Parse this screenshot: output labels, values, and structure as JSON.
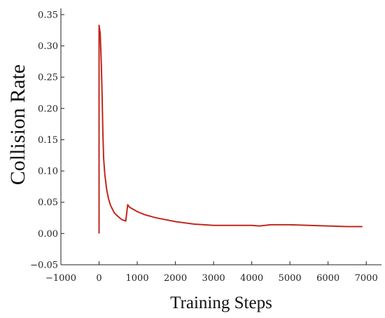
{
  "chart_data": {
    "type": "line",
    "title": "",
    "xlabel": "Training Steps",
    "ylabel": "Collision Rate",
    "xlim": [
      -1000,
      7400
    ],
    "ylim": [
      -0.05,
      0.36
    ],
    "xticks": [
      -1000,
      0,
      1000,
      2000,
      3000,
      4000,
      5000,
      6000,
      7000
    ],
    "xtick_labels": [
      "−1000",
      "0",
      "1000",
      "2000",
      "3000",
      "4000",
      "5000",
      "6000",
      "7000"
    ],
    "yticks": [
      -0.05,
      0.0,
      0.05,
      0.1,
      0.15,
      0.2,
      0.25,
      0.3,
      0.35
    ],
    "ytick_labels": [
      "−0.05",
      "0.00",
      "0.05",
      "0.10",
      "0.15",
      "0.20",
      "0.25",
      "0.30",
      "0.35"
    ],
    "grid": false,
    "legend": "none",
    "line_color": "#c0281c",
    "series": [
      {
        "x": [
          0,
          0,
          30,
          60,
          80,
          100,
          120,
          150,
          200,
          250,
          300,
          400,
          500,
          600,
          700,
          750,
          800,
          1000,
          1200,
          1500,
          2000,
          2500,
          3000,
          3500,
          4000,
          4200,
          4500,
          5000,
          5500,
          6000,
          6500,
          6900
        ],
        "y": [
          0.0,
          0.333,
          0.32,
          0.27,
          0.22,
          0.16,
          0.12,
          0.095,
          0.07,
          0.055,
          0.045,
          0.033,
          0.027,
          0.022,
          0.02,
          0.046,
          0.042,
          0.035,
          0.03,
          0.025,
          0.019,
          0.015,
          0.013,
          0.013,
          0.013,
          0.012,
          0.014,
          0.014,
          0.013,
          0.012,
          0.011,
          0.011
        ]
      }
    ]
  }
}
